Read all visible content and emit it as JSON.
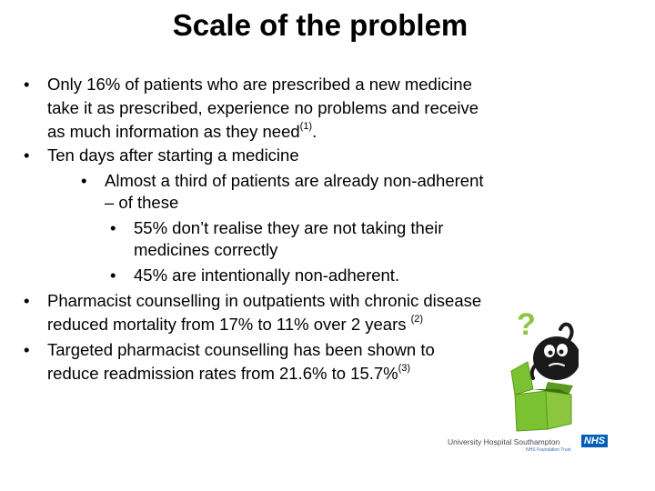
{
  "title": "Scale of the problem",
  "bullet_glyph": "•",
  "content": {
    "b1": {
      "l1": "Only 16% of patients who are prescribed a new medicine",
      "l2": "take it as prescribed, experience no problems and receive",
      "l3": "as much information as they need",
      "ref": "(1)",
      "l3_end": "."
    },
    "b2": {
      "l1": "Ten days after starting a medicine"
    },
    "b2a": {
      "l1": "Almost a third of patients are already non-adherent",
      "l2": "– of these"
    },
    "b2a1": {
      "l1": "55% don’t realise they are not taking their",
      "l2": "medicines correctly"
    },
    "b2a2": {
      "l1": "45% are intentionally non-adherent."
    },
    "b3": {
      "l1": "Pharmacist counselling in outpatients with chronic disease",
      "l2": "reduced mortality from 17% to 11% over 2 years ",
      "ref": "(2)"
    },
    "b4": {
      "l1": "Targeted pharmacist counselling has been shown to",
      "l2": "reduce readmission rates from 21.6% to 15.7%",
      "ref": "(3)"
    }
  },
  "mascot": {
    "icon": "question-mark-mascot-icon",
    "question_glyph": "?"
  },
  "logo": {
    "text": "University Hospital Southampton",
    "badge": "NHS",
    "subtext": "NHS Foundation Trust",
    "badge_color": "#005eb8"
  },
  "colors": {
    "box_green": "#7ac231",
    "box_green_dark": "#5a9a1e",
    "mascot_body": "#1a1a1a",
    "question_green": "#8cc63f"
  }
}
